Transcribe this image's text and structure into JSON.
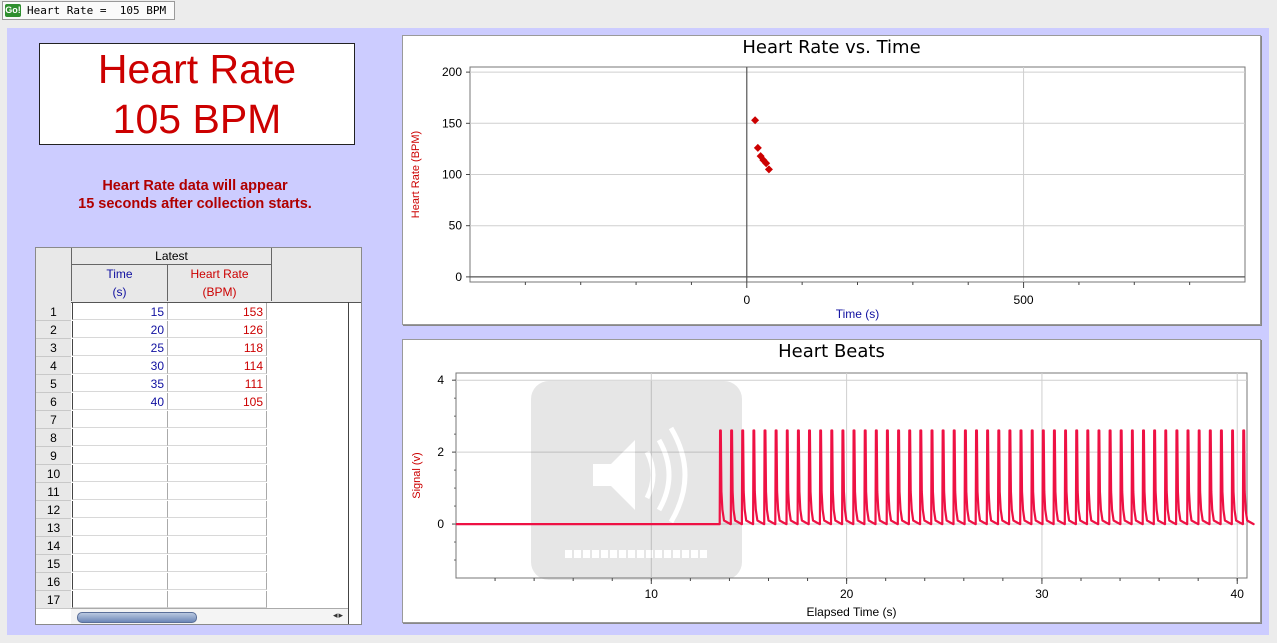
{
  "meter": {
    "icon_label": "Go!",
    "text": "Heart Rate =  105 BPM"
  },
  "display": {
    "line1": "Heart Rate",
    "line2": "105 BPM"
  },
  "note": {
    "line1": "Heart Rate data will appear",
    "line2": "15 seconds after collection starts."
  },
  "table": {
    "group_header": "Latest",
    "col_time": {
      "name": "Time",
      "unit": "(s)"
    },
    "col_hr": {
      "name": "Heart Rate",
      "unit": "(BPM)"
    },
    "rows": [
      {
        "n": "1",
        "t": "15",
        "hr": "153"
      },
      {
        "n": "2",
        "t": "20",
        "hr": "126"
      },
      {
        "n": "3",
        "t": "25",
        "hr": "118"
      },
      {
        "n": "4",
        "t": "30",
        "hr": "114"
      },
      {
        "n": "5",
        "t": "35",
        "hr": "111"
      },
      {
        "n": "6",
        "t": "40",
        "hr": "105"
      },
      {
        "n": "7",
        "t": "",
        "hr": ""
      },
      {
        "n": "8",
        "t": "",
        "hr": ""
      },
      {
        "n": "9",
        "t": "",
        "hr": ""
      },
      {
        "n": "10",
        "t": "",
        "hr": ""
      },
      {
        "n": "11",
        "t": "",
        "hr": ""
      },
      {
        "n": "12",
        "t": "",
        "hr": ""
      },
      {
        "n": "13",
        "t": "",
        "hr": ""
      },
      {
        "n": "14",
        "t": "",
        "hr": ""
      },
      {
        "n": "15",
        "t": "",
        "hr": ""
      },
      {
        "n": "16",
        "t": "",
        "hr": ""
      },
      {
        "n": "17",
        "t": "",
        "hr": ""
      }
    ]
  },
  "colors": {
    "accent_red": "#cc0000",
    "signal": "#ee1144",
    "blue_text": "#1010a0",
    "panel_bg": "#ccccff"
  },
  "chart_data": [
    {
      "type": "scatter",
      "title": "Heart Rate vs. Time",
      "xlabel": "Time (s)",
      "ylabel": "Heart Rate (BPM)",
      "xlim": [
        -500,
        900
      ],
      "ylim": [
        -5,
        205
      ],
      "xticks": [
        0,
        500
      ],
      "yticks": [
        0,
        50,
        100,
        150,
        200
      ],
      "grid": true,
      "series": [
        {
          "x": [
            15,
            20,
            25,
            30,
            35,
            40
          ],
          "y": [
            153,
            126,
            118,
            114,
            111,
            105
          ],
          "color": "#cc0000"
        }
      ]
    },
    {
      "type": "line",
      "title": "Heart Beats",
      "xlabel": "Elapsed Time (s)",
      "ylabel": "Signal (v)",
      "xlim": [
        0,
        40.5
      ],
      "ylim": [
        -1.5,
        4.2
      ],
      "xticks": [
        10,
        20,
        30,
        40
      ],
      "yticks": [
        0,
        2,
        4
      ],
      "grid": true,
      "series": [
        {
          "baseline": 0,
          "peak": 2.6,
          "signal_start": 13.5,
          "beat_interval_s": 0.57,
          "color": "#ee1144"
        }
      ]
    }
  ]
}
